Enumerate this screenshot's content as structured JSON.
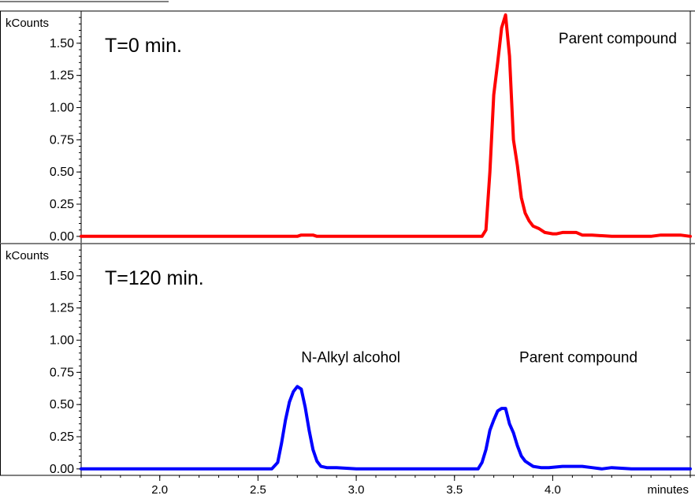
{
  "chart_data": [
    {
      "type": "line",
      "title": "T=0 min.",
      "ylabel": "kCounts",
      "xlim": [
        1.6,
        4.7
      ],
      "ylim": [
        -0.05,
        1.75
      ],
      "yticks": [
        0.0,
        0.25,
        0.5,
        0.75,
        1.0,
        1.25,
        1.5
      ],
      "ytick_labels": [
        "0.00",
        "0.25",
        "0.50",
        "0.75",
        "1.00",
        "1.25",
        "1.50"
      ],
      "annotations": [
        {
          "text": "Parent compound",
          "x": 4.03,
          "y": 1.5
        }
      ],
      "series": [
        {
          "color": "#ff0000",
          "x": [
            1.6,
            2.5,
            2.7,
            2.72,
            2.75,
            2.78,
            2.8,
            3.0,
            3.5,
            3.64,
            3.66,
            3.68,
            3.7,
            3.72,
            3.74,
            3.76,
            3.78,
            3.8,
            3.82,
            3.84,
            3.86,
            3.88,
            3.9,
            3.93,
            3.96,
            4.0,
            4.02,
            4.05,
            4.08,
            4.12,
            4.15,
            4.2,
            4.3,
            4.4,
            4.5,
            4.55,
            4.6,
            4.65,
            4.7
          ],
          "y": [
            0.0,
            0.0,
            0.0,
            0.01,
            0.01,
            0.01,
            0.0,
            0.0,
            0.0,
            0.0,
            0.05,
            0.5,
            1.1,
            1.35,
            1.62,
            1.72,
            1.4,
            0.75,
            0.55,
            0.3,
            0.18,
            0.12,
            0.08,
            0.06,
            0.03,
            0.02,
            0.02,
            0.03,
            0.03,
            0.03,
            0.01,
            0.01,
            0.0,
            0.0,
            0.0,
            0.01,
            0.01,
            0.01,
            0.0
          ]
        }
      ]
    },
    {
      "type": "line",
      "title": "T=120 min.",
      "ylabel": "kCounts",
      "xlabel": "minutes",
      "xlim": [
        1.6,
        4.7
      ],
      "ylim": [
        -0.05,
        1.75
      ],
      "yticks": [
        0.0,
        0.25,
        0.5,
        0.75,
        1.0,
        1.25,
        1.5
      ],
      "ytick_labels": [
        "0.00",
        "0.25",
        "0.50",
        "0.75",
        "1.00",
        "1.25",
        "1.50"
      ],
      "xticks": [
        2.0,
        2.5,
        3.0,
        3.5,
        4.0
      ],
      "xtick_labels": [
        "2.0",
        "2.5",
        "3.0",
        "3.5",
        "4.0"
      ],
      "annotations": [
        {
          "text": "N-Alkyl  alcohol",
          "x": 2.72,
          "y": 0.83
        },
        {
          "text": "Parent  compound",
          "x": 3.83,
          "y": 0.83
        }
      ],
      "series": [
        {
          "color": "#0000ff",
          "x": [
            1.6,
            2.5,
            2.57,
            2.6,
            2.62,
            2.64,
            2.66,
            2.68,
            2.7,
            2.72,
            2.74,
            2.76,
            2.78,
            2.8,
            2.82,
            2.85,
            2.9,
            3.0,
            3.3,
            3.62,
            3.64,
            3.66,
            3.68,
            3.7,
            3.72,
            3.74,
            3.76,
            3.78,
            3.8,
            3.82,
            3.84,
            3.86,
            3.88,
            3.9,
            3.94,
            3.98,
            4.05,
            4.1,
            4.15,
            4.2,
            4.25,
            4.3,
            4.4,
            4.7
          ],
          "y": [
            0.0,
            0.0,
            0.0,
            0.05,
            0.2,
            0.38,
            0.52,
            0.6,
            0.64,
            0.62,
            0.48,
            0.3,
            0.15,
            0.06,
            0.02,
            0.01,
            0.01,
            0.0,
            0.0,
            0.0,
            0.05,
            0.15,
            0.3,
            0.38,
            0.45,
            0.47,
            0.47,
            0.35,
            0.28,
            0.18,
            0.1,
            0.06,
            0.04,
            0.02,
            0.01,
            0.01,
            0.02,
            0.02,
            0.02,
            0.01,
            0.0,
            0.01,
            0.0,
            0.0
          ]
        }
      ]
    }
  ]
}
